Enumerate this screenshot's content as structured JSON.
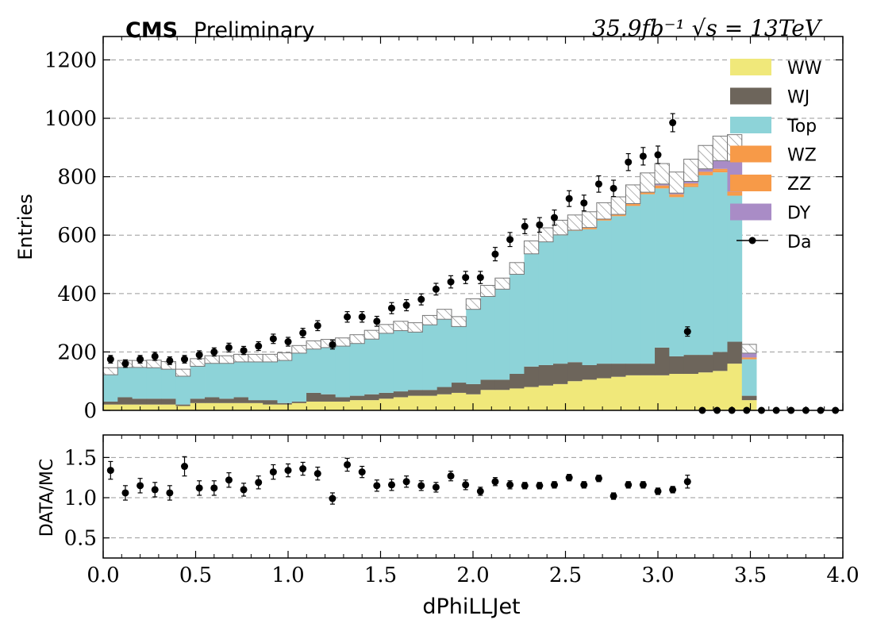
{
  "header": {
    "cms_label": "CMS",
    "status_label": "Preliminary",
    "lumi_label": "35.9fb⁻¹ √s = 13TeV"
  },
  "colors": {
    "WW": "#f0e87a",
    "WJ": "#6d655b",
    "Top": "#8dd3d8",
    "WZ": "#f79a48",
    "ZZ": "#f79a48",
    "DY": "#a98cc6",
    "data": "#000000",
    "grid": "#9a9a9a"
  },
  "chart_data": [
    {
      "type": "stacked-histogram",
      "ylabel": "Entries",
      "xlim": [
        0.0,
        4.0
      ],
      "ylim": [
        0,
        1280
      ],
      "yticks": [
        0,
        200,
        400,
        600,
        800,
        1000,
        1200
      ],
      "y_grid": true,
      "legend_position": "top-right",
      "bin_width": 0.0785,
      "bin_edges_start": 0.0,
      "series": [
        {
          "name": "WW",
          "values": [
            20,
            20,
            20,
            20,
            20,
            15,
            25,
            25,
            25,
            25,
            25,
            20,
            20,
            25,
            30,
            30,
            30,
            35,
            35,
            40,
            45,
            50,
            50,
            55,
            60,
            55,
            70,
            70,
            75,
            80,
            85,
            90,
            100,
            105,
            110,
            115,
            120,
            120,
            120,
            125,
            125,
            130,
            135,
            160,
            35
          ]
        },
        {
          "name": "WJ",
          "values": [
            10,
            25,
            20,
            20,
            20,
            5,
            15,
            20,
            15,
            20,
            10,
            15,
            5,
            5,
            30,
            25,
            15,
            15,
            20,
            20,
            20,
            20,
            20,
            25,
            35,
            35,
            35,
            35,
            50,
            70,
            70,
            70,
            65,
            50,
            50,
            45,
            40,
            40,
            95,
            60,
            65,
            60,
            65,
            75,
            15
          ]
        },
        {
          "name": "Top",
          "values": [
            95,
            105,
            110,
            110,
            105,
            100,
            115,
            120,
            125,
            125,
            135,
            135,
            150,
            170,
            155,
            165,
            180,
            185,
            195,
            210,
            215,
            205,
            230,
            240,
            200,
            265,
            290,
            315,
            345,
            390,
            425,
            440,
            450,
            465,
            490,
            505,
            540,
            580,
            545,
            545,
            575,
            615,
            615,
            500,
            125
          ]
        },
        {
          "name": "WZ",
          "values": [
            2,
            2,
            2,
            2,
            2,
            2,
            2,
            2,
            2,
            2,
            2,
            2,
            2,
            2,
            2,
            2,
            2,
            2,
            2,
            2,
            2,
            2,
            2,
            2,
            2,
            2,
            3,
            3,
            3,
            3,
            3,
            4,
            4,
            4,
            4,
            4,
            5,
            5,
            5,
            5,
            6,
            6,
            6,
            7,
            3
          ]
        },
        {
          "name": "ZZ",
          "values": [
            2,
            2,
            2,
            2,
            2,
            2,
            2,
            2,
            2,
            2,
            2,
            2,
            2,
            2,
            2,
            2,
            2,
            2,
            2,
            2,
            2,
            2,
            2,
            2,
            2,
            2,
            3,
            3,
            3,
            3,
            3,
            4,
            4,
            4,
            4,
            4,
            5,
            5,
            5,
            5,
            6,
            6,
            6,
            7,
            3
          ]
        },
        {
          "name": "DY",
          "values": [
            5,
            5,
            5,
            5,
            5,
            5,
            5,
            5,
            5,
            5,
            5,
            5,
            5,
            5,
            5,
            5,
            5,
            5,
            5,
            5,
            5,
            5,
            5,
            5,
            5,
            5,
            8,
            8,
            10,
            12,
            15,
            18,
            20,
            25,
            25,
            28,
            30,
            30,
            40,
            40,
            45,
            50,
            70,
            150,
            30
          ]
        }
      ],
      "mc_uncertainty": [
        12,
        12,
        12,
        13,
        13,
        12,
        13,
        13,
        13,
        13,
        13,
        13,
        13,
        13,
        14,
        14,
        14,
        15,
        15,
        15,
        16,
        16,
        16,
        17,
        17,
        18,
        19,
        19,
        20,
        22,
        24,
        25,
        26,
        27,
        28,
        30,
        32,
        33,
        35,
        36,
        38,
        40,
        42,
        45,
        15
      ],
      "data": {
        "name": "Da",
        "x": [
          0.04,
          0.12,
          0.2,
          0.28,
          0.36,
          0.44,
          0.52,
          0.6,
          0.68,
          0.76,
          0.84,
          0.92,
          1.0,
          1.08,
          1.16,
          1.24,
          1.32,
          1.4,
          1.48,
          1.56,
          1.64,
          1.72,
          1.8,
          1.88,
          1.96,
          2.04,
          2.12,
          2.2,
          2.28,
          2.36,
          2.44,
          2.52,
          2.6,
          2.68,
          2.76,
          2.84,
          2.92,
          3.0,
          3.08,
          3.16,
          3.24,
          3.32,
          3.4,
          3.48,
          3.56,
          3.64,
          3.72,
          3.8,
          3.88,
          3.96
        ],
        "y": [
          175,
          160,
          175,
          185,
          170,
          175,
          190,
          200,
          215,
          205,
          220,
          245,
          235,
          265,
          290,
          225,
          320,
          320,
          305,
          350,
          360,
          380,
          415,
          440,
          455,
          455,
          535,
          585,
          630,
          635,
          660,
          725,
          710,
          775,
          760,
          850,
          870,
          875,
          985,
          270,
          0,
          0,
          0,
          0,
          0,
          0,
          0,
          0,
          0,
          0
        ],
        "err": [
          13,
          13,
          13,
          14,
          13,
          13,
          14,
          14,
          15,
          14,
          15,
          16,
          15,
          16,
          17,
          15,
          18,
          18,
          17,
          19,
          19,
          19,
          20,
          21,
          21,
          21,
          23,
          24,
          25,
          25,
          26,
          27,
          27,
          28,
          28,
          29,
          30,
          30,
          31,
          16,
          0,
          0,
          0,
          0,
          0,
          0,
          0,
          0,
          0,
          0
        ]
      }
    },
    {
      "type": "scatter",
      "xlabel": "dPhiLLJet",
      "ylabel": "DATA/MC",
      "xlim": [
        0.0,
        4.0
      ],
      "ylim": [
        0.25,
        1.78
      ],
      "yticks": [
        0.5,
        1.0,
        1.5
      ],
      "yticklabels": [
        "0.5",
        "1.0",
        "1.5"
      ],
      "xticks": [
        0.0,
        0.5,
        1.0,
        1.5,
        2.0,
        2.5,
        3.0,
        3.5,
        4.0
      ],
      "xticklabels": [
        "0.0",
        "0.5",
        "1.0",
        "1.5",
        "2.0",
        "2.5",
        "3.0",
        "3.5",
        "4.0"
      ],
      "y_grid": true,
      "x": [
        0.04,
        0.12,
        0.2,
        0.28,
        0.36,
        0.44,
        0.52,
        0.6,
        0.68,
        0.76,
        0.84,
        0.92,
        1.0,
        1.08,
        1.16,
        1.24,
        1.32,
        1.4,
        1.48,
        1.56,
        1.64,
        1.72,
        1.8,
        1.88,
        1.96,
        2.04,
        2.12,
        2.2,
        2.28,
        2.36,
        2.44,
        2.52,
        2.6,
        2.68,
        2.76,
        2.84,
        2.92,
        3.0,
        3.08,
        3.16
      ],
      "y": [
        1.34,
        1.06,
        1.15,
        1.1,
        1.06,
        1.39,
        1.12,
        1.12,
        1.22,
        1.1,
        1.19,
        1.32,
        1.34,
        1.36,
        1.3,
        0.99,
        1.41,
        1.32,
        1.15,
        1.16,
        1.2,
        1.15,
        1.13,
        1.27,
        1.16,
        1.08,
        1.2,
        1.16,
        1.15,
        1.15,
        1.16,
        1.25,
        1.16,
        1.24,
        1.02,
        1.16,
        1.16,
        1.08,
        1.1,
        1.2
      ],
      "err": [
        0.11,
        0.09,
        0.09,
        0.09,
        0.09,
        0.12,
        0.09,
        0.09,
        0.09,
        0.08,
        0.08,
        0.09,
        0.08,
        0.08,
        0.08,
        0.07,
        0.08,
        0.07,
        0.07,
        0.07,
        0.07,
        0.06,
        0.06,
        0.06,
        0.06,
        0.05,
        0.05,
        0.05,
        0.04,
        0.04,
        0.04,
        0.04,
        0.04,
        0.04,
        0.04,
        0.04,
        0.04,
        0.04,
        0.04,
        0.08
      ]
    }
  ]
}
